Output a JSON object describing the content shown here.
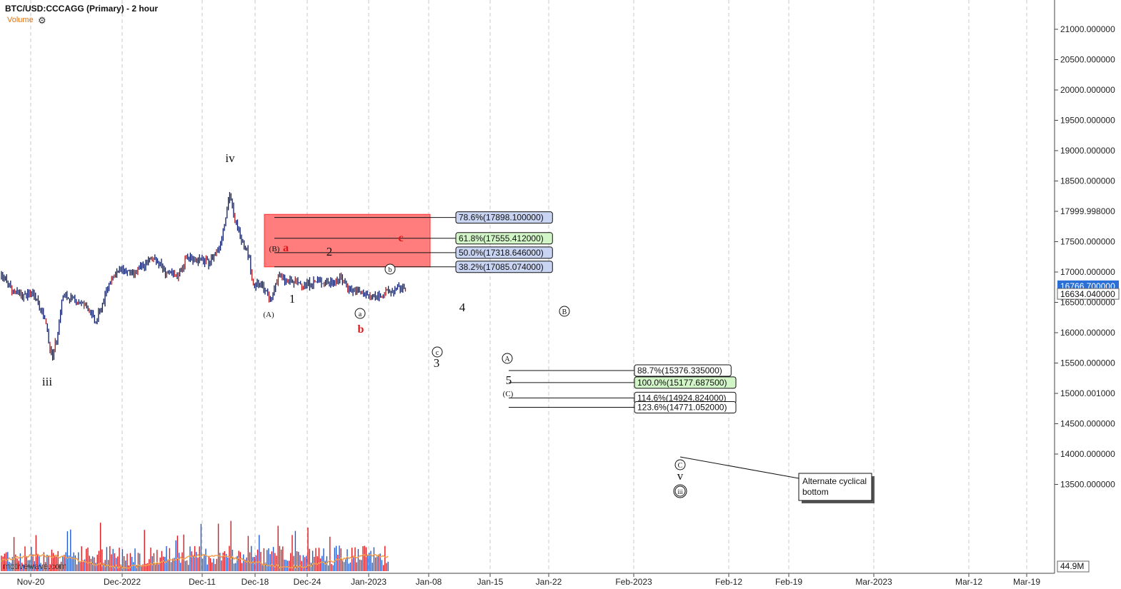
{
  "header": {
    "title": "BTC/USD:CCCAGG (Primary) - 2 hour",
    "volume_label": "Volume",
    "watermark": "motivewave.com"
  },
  "colors": {
    "candle": "#0a1a66",
    "wave_red": "#e0161a",
    "zone": "#ff7d7d",
    "fib_blue": "#c9d4f2",
    "fib_green": "#d2f5c8",
    "grid": "#c8c8c8",
    "volume_red": "#e0161a",
    "volume_blue": "#1f5bd0",
    "volume_ma": "#f0a050"
  },
  "chart_data": {
    "type": "candlestick",
    "title": "BTC/USD:CCCAGG (Primary) - 2 hour",
    "ylim": [
      13150,
      21050
    ],
    "y_ticks": [
      "21000.000000",
      "20500.000000",
      "20000.000000",
      "19500.000000",
      "19000.000000",
      "18500.000000",
      "17999.998000",
      "17500.000000",
      "17000.000000",
      "16500.000000",
      "16000.000000",
      "15500.000000",
      "15000.001000",
      "14500.000000",
      "14000.000000",
      "13500.000000"
    ],
    "x_ticks": [
      "Nov-20",
      "Dec-2022",
      "Dec-11",
      "Dec-18",
      "Dec-24",
      "Jan-2023",
      "Jan-08",
      "Jan-15",
      "Jan-22",
      "Feb-2023",
      "Feb-12",
      "Feb-19",
      "Mar-2023",
      "Mar-12",
      "Mar-19"
    ],
    "last_price": "16766.700000",
    "secondary_price": "16634.040000",
    "volume_scale_label": "44.9M",
    "price_path": [
      {
        "d": 0,
        "p": 16950
      },
      {
        "d": 1,
        "p": 16700
      },
      {
        "d": 2,
        "p": 16600
      },
      {
        "d": 3,
        "p": 16650
      },
      {
        "d": 4,
        "p": 16200
      },
      {
        "d": 4.6,
        "p": 15600
      },
      {
        "d": 5,
        "p": 15850
      },
      {
        "d": 5.6,
        "p": 16600
      },
      {
        "d": 6.5,
        "p": 16550
      },
      {
        "d": 7.2,
        "p": 16500
      },
      {
        "d": 8,
        "p": 16400
      },
      {
        "d": 8.6,
        "p": 16150
      },
      {
        "d": 9.2,
        "p": 16450
      },
      {
        "d": 10,
        "p": 16900
      },
      {
        "d": 11,
        "p": 17050
      },
      {
        "d": 12,
        "p": 16950
      },
      {
        "d": 13,
        "p": 17100
      },
      {
        "d": 14,
        "p": 17250
      },
      {
        "d": 15,
        "p": 17000
      },
      {
        "d": 16,
        "p": 16900
      },
      {
        "d": 17,
        "p": 17250
      },
      {
        "d": 18,
        "p": 17200
      },
      {
        "d": 19,
        "p": 17150
      },
      {
        "d": 20,
        "p": 17450
      },
      {
        "d": 20.9,
        "p": 18300
      },
      {
        "d": 21.3,
        "p": 17850
      },
      {
        "d": 22,
        "p": 17550
      },
      {
        "d": 22.6,
        "p": 17300
      },
      {
        "d": 23,
        "p": 16800
      },
      {
        "d": 24,
        "p": 16750
      },
      {
        "d": 24.6,
        "p": 16500
      },
      {
        "d": 25.3,
        "p": 16950
      },
      {
        "d": 26,
        "p": 16850
      },
      {
        "d": 27,
        "p": 16820
      },
      {
        "d": 28,
        "p": 16800
      },
      {
        "d": 29,
        "p": 16850
      },
      {
        "d": 30,
        "p": 16820
      },
      {
        "d": 31,
        "p": 16900
      },
      {
        "d": 32,
        "p": 16700
      },
      {
        "d": 33,
        "p": 16650
      },
      {
        "d": 34,
        "p": 16580
      },
      {
        "d": 35,
        "p": 16650
      },
      {
        "d": 36,
        "p": 16700
      },
      {
        "d": 37,
        "p": 16760
      }
    ],
    "fib_upper": [
      {
        "label": "78.6%(17898.100000)",
        "value": 17898.1,
        "style": "blue"
      },
      {
        "label": "61.8%(17555.412000)",
        "value": 17555.412,
        "style": "green"
      },
      {
        "label": "50.0%(17318.646000)",
        "value": 17318.646,
        "style": "blue"
      },
      {
        "label": "38.2%(17085.074000)",
        "value": 17085.074,
        "style": "blue"
      }
    ],
    "fib_lower": [
      {
        "label": "88.7%(15376.335000)",
        "value": 15376.335,
        "style": "plain"
      },
      {
        "label": "100.0%(15177.687500)",
        "value": 15177.6875,
        "style": "green"
      },
      {
        "label": "114.6%(14924.824000)",
        "value": 14924.824,
        "style": "plain"
      },
      {
        "label": "123.6%(14771.052000)",
        "value": 14771.052,
        "style": "plain"
      }
    ],
    "zone": {
      "top": 17950,
      "bottom": 17085
    },
    "annotation": {
      "text_line1": "Alternate cyclical",
      "text_line2": "bottom"
    },
    "wave_labels": [
      {
        "text": "iv",
        "style": "serif-large"
      },
      {
        "text": "iii",
        "style": "serif-large"
      },
      {
        "text": "(B)",
        "style": "serif-small"
      },
      {
        "text": "(A)",
        "style": "serif-small"
      },
      {
        "text": "a",
        "style": "red"
      },
      {
        "text": "b",
        "style": "red"
      },
      {
        "text": "c",
        "style": "red"
      },
      {
        "text": "1",
        "style": "serif-large"
      },
      {
        "text": "2",
        "style": "serif-large"
      },
      {
        "text": "3",
        "style": "serif-large"
      },
      {
        "text": "4",
        "style": "serif-large"
      },
      {
        "text": "5",
        "style": "serif-large"
      },
      {
        "text": "(C)",
        "style": "serif-small"
      },
      {
        "text": "v",
        "style": "serif-large"
      },
      {
        "text": "a",
        "style": "circled"
      },
      {
        "text": "b",
        "style": "circled"
      },
      {
        "text": "c",
        "style": "circled"
      },
      {
        "text": "B",
        "style": "circled"
      },
      {
        "text": "A",
        "style": "circled"
      },
      {
        "text": "C",
        "style": "circled"
      },
      {
        "text": "iii",
        "style": "circled"
      }
    ]
  }
}
